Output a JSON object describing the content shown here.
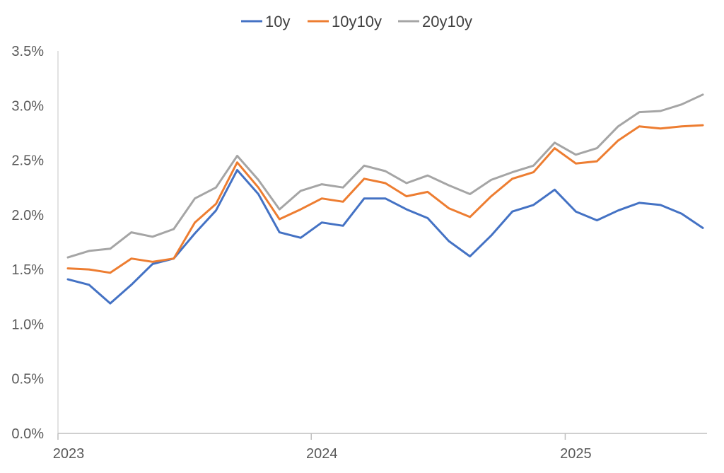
{
  "chart_data": {
    "type": "line",
    "title": "",
    "xlabel": "",
    "ylabel": "",
    "ylim": [
      0,
      3.5
    ],
    "y_ticks": [
      0.0,
      0.5,
      1.0,
      1.5,
      2.0,
      2.5,
      3.0,
      3.5
    ],
    "y_tick_labels": [
      "0.0%",
      "0.5%",
      "1.0%",
      "1.5%",
      "2.0%",
      "2.5%",
      "3.0%",
      "3.5%"
    ],
    "x_count": 31,
    "x_tick_indices": [
      0,
      12,
      24
    ],
    "x_tick_labels": [
      "2023",
      "2024",
      "2025"
    ],
    "grid": false,
    "legend": "top-center",
    "series": [
      {
        "name": "10y",
        "color": "#4472C4",
        "values": [
          1.41,
          1.36,
          1.19,
          1.36,
          1.55,
          1.6,
          1.83,
          2.04,
          2.41,
          2.19,
          1.84,
          1.79,
          1.93,
          1.9,
          2.15,
          2.15,
          2.05,
          1.97,
          1.76,
          1.62,
          1.81,
          2.03,
          2.09,
          2.23,
          2.03,
          1.95,
          2.04,
          2.11,
          2.09,
          2.01,
          1.88
        ]
      },
      {
        "name": "10y10y",
        "color": "#ED7D31",
        "values": [
          1.51,
          1.5,
          1.47,
          1.6,
          1.57,
          1.6,
          1.93,
          2.1,
          2.48,
          2.25,
          1.96,
          2.05,
          2.15,
          2.12,
          2.33,
          2.29,
          2.17,
          2.21,
          2.06,
          1.98,
          2.17,
          2.33,
          2.39,
          2.61,
          2.47,
          2.49,
          2.68,
          2.81,
          2.79,
          2.81,
          2.82
        ]
      },
      {
        "name": "20y10y",
        "color": "#A5A5A5",
        "values": [
          1.61,
          1.67,
          1.69,
          1.84,
          1.8,
          1.87,
          2.15,
          2.25,
          2.54,
          2.32,
          2.05,
          2.22,
          2.28,
          2.25,
          2.45,
          2.4,
          2.29,
          2.36,
          2.27,
          2.19,
          2.32,
          2.39,
          2.45,
          2.66,
          2.55,
          2.61,
          2.81,
          2.94,
          2.95,
          3.01,
          3.1
        ]
      }
    ]
  }
}
